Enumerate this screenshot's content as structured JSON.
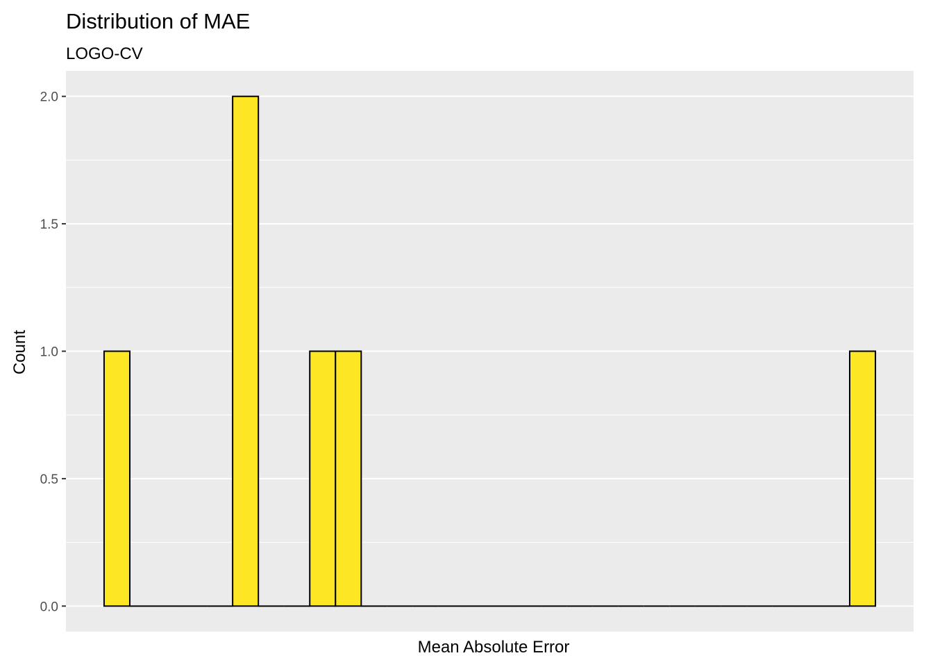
{
  "chart_data": {
    "type": "bar",
    "title": "Distribution of MAE",
    "subtitle": "LOGO-CV",
    "xlabel": "Mean Absolute Error",
    "ylabel": "Count",
    "ylim": [
      -0.1,
      2.1
    ],
    "yticks": [
      "0.0",
      "0.5",
      "1.0",
      "1.5",
      "2.0"
    ],
    "ytick_values": [
      0,
      0.5,
      1.0,
      1.5,
      2.0
    ],
    "bins": 30,
    "counts": [
      1,
      0,
      0,
      0,
      0,
      2,
      0,
      0,
      1,
      1,
      0,
      0,
      0,
      0,
      0,
      0,
      0,
      0,
      0,
      0,
      0,
      0,
      0,
      0,
      0,
      0,
      0,
      0,
      0,
      1
    ],
    "grid": true,
    "x_axis_labels_shown": false,
    "colors": {
      "bar_fill": "#FDE725",
      "bar_stroke": "#000000",
      "panel": "#EBEBEB",
      "grid": "#FFFFFF"
    }
  }
}
